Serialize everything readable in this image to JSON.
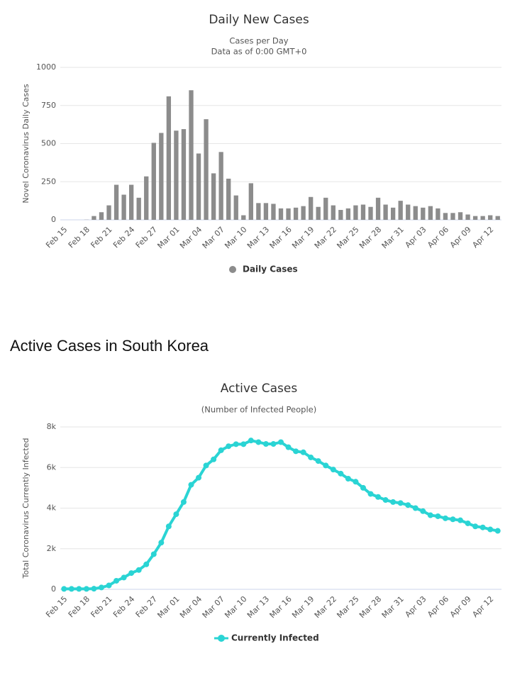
{
  "section_title": "Active Cases in South Korea",
  "chart_data": [
    {
      "type": "bar",
      "title": "Daily New Cases",
      "subtitle": [
        "Cases per Day",
        "Data as of 0:00 GMT+0"
      ],
      "y_label": "Novel Coronavirus Daily Cases",
      "categories": [
        "Feb 15",
        null,
        null,
        "Feb 18",
        null,
        null,
        "Feb 21",
        null,
        null,
        "Feb 24",
        null,
        null,
        "Feb 27",
        null,
        null,
        "Mar 01",
        null,
        null,
        "Mar 04",
        null,
        null,
        "Mar 07",
        null,
        null,
        "Mar 10",
        null,
        null,
        "Mar 13",
        null,
        null,
        "Mar 16",
        null,
        null,
        "Mar 19",
        null,
        null,
        "Mar 22",
        null,
        null,
        "Mar 25",
        null,
        null,
        "Mar 28",
        null,
        null,
        "Mar 31",
        null,
        null,
        "Apr 03",
        null,
        null,
        "Apr 06",
        null,
        null,
        "Apr 09",
        null,
        null,
        "Apr 12",
        null
      ],
      "series": [
        {
          "name": "Daily Cases",
          "color": "#8c8c8c",
          "values": [
            0,
            0,
            0,
            1,
            25,
            50,
            95,
            230,
            165,
            230,
            145,
            285,
            505,
            570,
            810,
            585,
            595,
            850,
            435,
            660,
            305,
            445,
            270,
            160,
            30,
            240,
            110,
            110,
            105,
            75,
            75,
            80,
            90,
            150,
            85,
            145,
            95,
            65,
            75,
            95,
            100,
            85,
            145,
            100,
            80,
            125,
            100,
            90,
            80,
            90,
            75,
            45,
            45,
            50,
            35,
            25,
            25,
            30,
            25
          ]
        }
      ],
      "ylim": [
        0,
        1000
      ],
      "yticks": [
        0,
        250,
        500,
        750,
        1000
      ],
      "grid": true
    },
    {
      "type": "line",
      "title": "Active Cases",
      "subtitle": [
        "(Number of Infected People)"
      ],
      "y_label": "Total Coronavirus Currently Infected",
      "categories": [
        "Feb 15",
        null,
        null,
        "Feb 18",
        null,
        null,
        "Feb 21",
        null,
        null,
        "Feb 24",
        null,
        null,
        "Feb 27",
        null,
        null,
        "Mar 01",
        null,
        null,
        "Mar 04",
        null,
        null,
        "Mar 07",
        null,
        null,
        "Mar 10",
        null,
        null,
        "Mar 13",
        null,
        null,
        "Mar 16",
        null,
        null,
        "Mar 19",
        null,
        null,
        "Mar 22",
        null,
        null,
        "Mar 25",
        null,
        null,
        "Mar 28",
        null,
        null,
        "Mar 31",
        null,
        null,
        "Apr 03",
        null,
        null,
        "Apr 06",
        null,
        null,
        "Apr 09",
        null,
        null,
        "Apr 12",
        null
      ],
      "series": [
        {
          "name": "Currently Infected",
          "color": "#2ad4d4",
          "values": [
            20,
            20,
            20,
            20,
            30,
            90,
            190,
            420,
            580,
            800,
            950,
            1230,
            1730,
            2300,
            3100,
            3700,
            4300,
            5150,
            5500,
            6100,
            6400,
            6850,
            7050,
            7150,
            7150,
            7330,
            7250,
            7160,
            7160,
            7250,
            7000,
            6800,
            6750,
            6500,
            6320,
            6100,
            5900,
            5700,
            5450,
            5300,
            5000,
            4700,
            4550,
            4400,
            4300,
            4250,
            4150,
            4000,
            3850,
            3650,
            3600,
            3500,
            3450,
            3400,
            3250,
            3100,
            3050,
            2950,
            2880
          ]
        }
      ],
      "ylim": [
        0,
        8000
      ],
      "yticks": [
        0,
        {
          "value": 2000,
          "label": "2k"
        },
        {
          "value": 4000,
          "label": "4k"
        },
        {
          "value": 6000,
          "label": "6k"
        },
        {
          "value": 8000,
          "label": "8k"
        }
      ],
      "grid": true
    }
  ]
}
